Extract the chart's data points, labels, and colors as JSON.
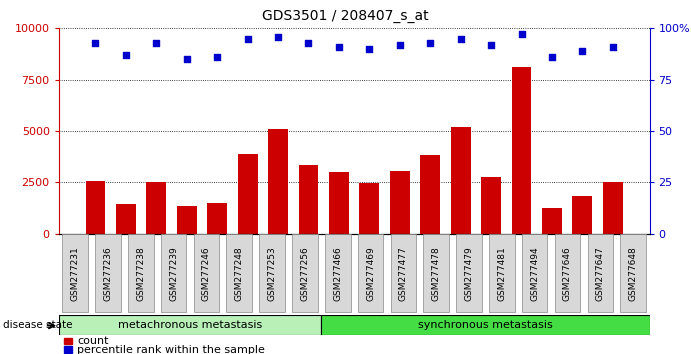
{
  "title": "GDS3501 / 208407_s_at",
  "samples": [
    "GSM277231",
    "GSM277236",
    "GSM277238",
    "GSM277239",
    "GSM277246",
    "GSM277248",
    "GSM277253",
    "GSM277256",
    "GSM277466",
    "GSM277469",
    "GSM277477",
    "GSM277478",
    "GSM277479",
    "GSM277481",
    "GSM277494",
    "GSM277646",
    "GSM277647",
    "GSM277648"
  ],
  "counts": [
    2550,
    1450,
    2500,
    1350,
    1500,
    3900,
    5100,
    3350,
    3000,
    2450,
    3050,
    3850,
    5200,
    2750,
    8100,
    1250,
    1850,
    2500
  ],
  "percentiles": [
    93,
    87,
    93,
    85,
    86,
    95,
    96,
    93,
    91,
    90,
    92,
    93,
    95,
    92,
    97,
    86,
    89,
    91
  ],
  "group1_label": "metachronous metastasis",
  "group1_count": 8,
  "group2_label": "synchronous metastasis",
  "group2_count": 10,
  "bar_color": "#cc0000",
  "scatter_color": "#0000cc",
  "ylim_left": [
    0,
    10000
  ],
  "ylim_right": [
    0,
    100
  ],
  "yticks_left": [
    0,
    2500,
    5000,
    7500,
    10000
  ],
  "yticks_right": [
    0,
    25,
    50,
    75,
    100
  ],
  "group1_bg": "#b8f0b8",
  "group2_bg": "#44dd44",
  "tick_bg": "#d8d8d8",
  "disease_state_label": "disease state",
  "legend_count_label": "count",
  "legend_pct_label": "percentile rank within the sample"
}
